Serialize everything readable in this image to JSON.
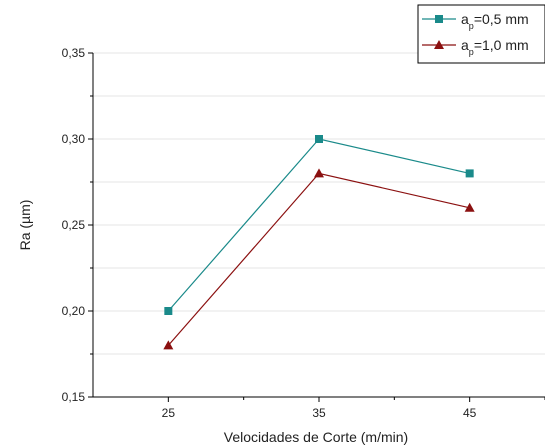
{
  "chart_data": {
    "type": "line",
    "xlabel": "Velocidades de Corte (m/min)",
    "ylabel_main": "Ra (",
    "ylabel_unit": "µm",
    "ylabel_close": ")",
    "x": [
      25,
      35,
      45
    ],
    "x_tick_labels": [
      "25",
      "35",
      "45"
    ],
    "xlim": [
      20,
      50
    ],
    "ylim": [
      0.15,
      0.35
    ],
    "y_ticks": [
      0.15,
      0.2,
      0.25,
      0.3,
      0.35
    ],
    "y_tick_labels": [
      "0,15",
      "0,20",
      "0,25",
      "0,30",
      "0,35"
    ],
    "grid": "horizontal",
    "legend_position": "top-right",
    "series": [
      {
        "legend_main": "a",
        "legend_sub": "p",
        "legend_value": "=0,5 mm",
        "values": [
          0.2,
          0.3,
          0.28
        ],
        "color": "#1a8a8a",
        "marker": "square"
      },
      {
        "legend_main": "a",
        "legend_sub": "p",
        "legend_value": "=1,0 mm",
        "values": [
          0.18,
          0.28,
          0.26
        ],
        "color": "#8b1010",
        "marker": "triangle"
      }
    ]
  }
}
